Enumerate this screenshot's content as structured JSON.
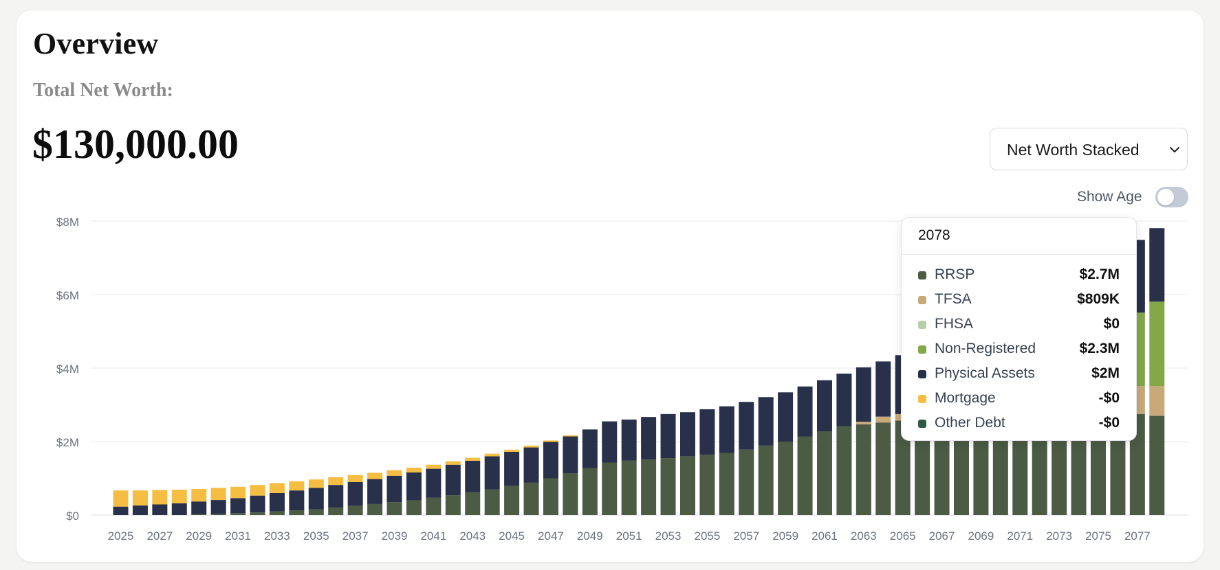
{
  "header": {
    "title": "Overview",
    "subtitle": "Total Net Worth:",
    "amount": "$130,000.00"
  },
  "view_select": {
    "selected": "Net Worth Stacked",
    "icon": "chevron-down-icon"
  },
  "show_age": {
    "label": "Show Age",
    "on": false
  },
  "tooltip": {
    "year": "2078",
    "rows": [
      {
        "name": "RRSP",
        "value": "$2.7M",
        "color": "#4b5b44"
      },
      {
        "name": "TFSA",
        "value": "$809K",
        "color": "#c8a97a"
      },
      {
        "name": "FHSA",
        "value": "$0",
        "color": "#b5d0a8"
      },
      {
        "name": "Non-Registered",
        "value": "$2.3M",
        "color": "#84a848"
      },
      {
        "name": "Physical Assets",
        "value": "$2M",
        "color": "#28304a"
      },
      {
        "name": "Mortgage",
        "value": "-$0",
        "color": "#f5bd41"
      },
      {
        "name": "Other Debt",
        "value": "-$0",
        "color": "#2f5a45"
      }
    ]
  },
  "chart_data": {
    "type": "bar",
    "stacked": true,
    "ylim": [
      0,
      8000000
    ],
    "y_ticks": [
      "$0",
      "$2M",
      "$4M",
      "$6M",
      "$8M"
    ],
    "x_tick_labels": [
      "2025",
      "2027",
      "2029",
      "2031",
      "2033",
      "2035",
      "2037",
      "2039",
      "2041",
      "2043",
      "2045",
      "2047",
      "2049",
      "2051",
      "2053",
      "2055",
      "2057",
      "2059",
      "2061",
      "2063",
      "2065",
      "2067",
      "2069",
      "2071",
      "2073",
      "2075",
      "2077"
    ],
    "grid": true,
    "categories": [
      "2025",
      "2026",
      "2027",
      "2028",
      "2029",
      "2030",
      "2031",
      "2032",
      "2033",
      "2034",
      "2035",
      "2036",
      "2037",
      "2038",
      "2039",
      "2040",
      "2041",
      "2042",
      "2043",
      "2044",
      "2045",
      "2046",
      "2047",
      "2048",
      "2049",
      "2050",
      "2051",
      "2052",
      "2053",
      "2054",
      "2055",
      "2056",
      "2057",
      "2058",
      "2059",
      "2060",
      "2061",
      "2062",
      "2063",
      "2064",
      "2065",
      "2066",
      "2067",
      "2068",
      "2069",
      "2070",
      "2071",
      "2072",
      "2073",
      "2074",
      "2075",
      "2076",
      "2077",
      "2078"
    ],
    "series": [
      {
        "name": "RRSP",
        "color": "#4b5b44",
        "values": [
          0,
          0,
          0,
          0,
          20000,
          30000,
          50000,
          70000,
          100000,
          130000,
          160000,
          200000,
          250000,
          300000,
          350000,
          400000,
          470000,
          540000,
          620000,
          700000,
          790000,
          880000,
          1000000,
          1140000,
          1280000,
          1430000,
          1480000,
          1510000,
          1550000,
          1600000,
          1640000,
          1690000,
          1780000,
          1890000,
          2000000,
          2140000,
          2280000,
          2420000,
          2470000,
          2520000,
          2570000,
          2600000,
          2620000,
          2630000,
          2640000,
          2650000,
          2660000,
          2670000,
          2680000,
          2690000,
          2700000,
          2710000,
          2750000,
          2700000
        ]
      },
      {
        "name": "TFSA",
        "color": "#c8a97a",
        "values": [
          0,
          0,
          0,
          0,
          0,
          0,
          0,
          0,
          0,
          0,
          0,
          0,
          0,
          0,
          0,
          0,
          0,
          0,
          0,
          0,
          0,
          0,
          0,
          0,
          0,
          0,
          0,
          0,
          0,
          0,
          0,
          0,
          0,
          0,
          0,
          0,
          0,
          0,
          70000,
          160000,
          180000,
          200000,
          250000,
          300000,
          350000,
          400000,
          450000,
          500000,
          550000,
          600000,
          650000,
          700000,
          760000,
          809000
        ]
      },
      {
        "name": "FHSA",
        "color": "#b5d0a8",
        "values": [
          0,
          0,
          0,
          0,
          0,
          0,
          0,
          0,
          0,
          0,
          0,
          0,
          0,
          0,
          0,
          0,
          0,
          0,
          0,
          0,
          0,
          0,
          0,
          0,
          0,
          0,
          0,
          0,
          0,
          0,
          0,
          0,
          0,
          0,
          0,
          0,
          0,
          0,
          0,
          0,
          0,
          0,
          0,
          0,
          0,
          0,
          0,
          0,
          0,
          0,
          0,
          0,
          0,
          0
        ]
      },
      {
        "name": "Non-Registered",
        "color": "#84a848",
        "values": [
          0,
          0,
          0,
          0,
          0,
          0,
          0,
          0,
          0,
          0,
          0,
          0,
          0,
          0,
          0,
          0,
          0,
          0,
          0,
          0,
          0,
          0,
          0,
          0,
          0,
          0,
          0,
          0,
          0,
          0,
          0,
          0,
          0,
          0,
          0,
          0,
          0,
          0,
          0,
          0,
          0,
          0,
          0,
          0,
          0,
          0,
          0,
          0,
          0,
          0,
          0,
          1000000,
          2000000,
          2300000
        ]
      },
      {
        "name": "Physical Assets",
        "color": "#28304a",
        "values": [
          230000,
          260000,
          290000,
          320000,
          350000,
          380000,
          410000,
          460000,
          500000,
          540000,
          580000,
          620000,
          650000,
          680000,
          720000,
          760000,
          790000,
          830000,
          860000,
          900000,
          930000,
          960000,
          990000,
          1000000,
          1050000,
          1120000,
          1120000,
          1160000,
          1200000,
          1200000,
          1240000,
          1270000,
          1300000,
          1320000,
          1340000,
          1360000,
          1390000,
          1430000,
          1480000,
          1500000,
          1600000,
          1650000,
          1700000,
          1750000,
          1800000,
          1850000,
          1880000,
          1900000,
          1930000,
          1950000,
          1980000,
          1990000,
          1980000,
          2000000
        ]
      },
      {
        "name": "Mortgage",
        "color": "#f5bd41",
        "values": [
          440000,
          410000,
          390000,
          370000,
          340000,
          330000,
          310000,
          290000,
          270000,
          250000,
          230000,
          210000,
          190000,
          170000,
          150000,
          130000,
          110000,
          95000,
          80000,
          70000,
          60000,
          50000,
          40000,
          30000,
          0,
          0,
          0,
          0,
          0,
          0,
          0,
          0,
          0,
          0,
          0,
          0,
          0,
          0,
          0,
          0,
          0,
          0,
          0,
          0,
          0,
          0,
          0,
          0,
          0,
          0,
          0,
          0,
          0,
          0
        ]
      },
      {
        "name": "Other Debt",
        "color": "#2f5a45",
        "values": [
          0,
          0,
          0,
          0,
          0,
          0,
          0,
          0,
          0,
          0,
          0,
          0,
          0,
          0,
          0,
          0,
          0,
          0,
          0,
          0,
          0,
          0,
          0,
          0,
          0,
          0,
          0,
          0,
          0,
          0,
          0,
          0,
          0,
          0,
          0,
          0,
          0,
          0,
          0,
          0,
          0,
          0,
          0,
          0,
          0,
          0,
          0,
          0,
          0,
          0,
          0,
          0,
          0,
          0
        ]
      }
    ]
  }
}
